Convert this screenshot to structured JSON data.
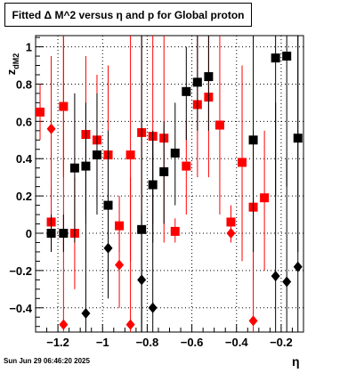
{
  "title": "Fitted Δ M^2 versus η and p for Global proton",
  "footer": "Sun Jun 29 06:46:20 2025",
  "chart_data": {
    "type": "scatter",
    "title": "Fitted Δ M^2 versus η and p for Global proton",
    "xlabel": "η",
    "ylabel": "z_dM2",
    "xlim": [
      -1.3,
      -0.1
    ],
    "ylim": [
      -0.53,
      1.06
    ],
    "grid": true,
    "x_ticks": [
      -1.2,
      -1.0,
      -0.8,
      -0.6,
      -0.4,
      -0.2
    ],
    "x_tick_labels": [
      "−1.2",
      "−1",
      "−0.8",
      "−0.6",
      "−0.4",
      "−0.2"
    ],
    "y_ticks": [
      -0.4,
      -0.2,
      0,
      0.2,
      0.4,
      0.6,
      0.8,
      1.0
    ],
    "y_tick_labels": [
      "−0.4",
      "−0.2",
      "0",
      "0.2",
      "0.4",
      "0.6",
      "0.8",
      "1"
    ],
    "series": [
      {
        "color": "#ff0000",
        "marker": "square",
        "points": [
          {
            "x": -1.28,
            "y": 0.65,
            "lo": 0.5,
            "hi": 0.8
          },
          {
            "x": -1.23,
            "y": 0.06,
            "lo": -0.1,
            "hi": 0.25
          },
          {
            "x": -1.175,
            "y": 0.68,
            "lo": 0.3,
            "hi": 1.06
          },
          {
            "x": -1.125,
            "y": 0.0,
            "lo": -0.3,
            "hi": 0.3
          },
          {
            "x": -1.075,
            "y": 0.53,
            "lo": 0.1,
            "hi": 0.95
          },
          {
            "x": -1.025,
            "y": 0.5,
            "lo": 0.15,
            "hi": 0.85
          },
          {
            "x": -0.975,
            "y": 0.42,
            "lo": -0.05,
            "hi": 0.9
          },
          {
            "x": -0.925,
            "y": 0.04,
            "lo": -0.1,
            "hi": 0.2
          },
          {
            "x": -0.875,
            "y": 0.42,
            "lo": -0.15,
            "hi": 1.06
          },
          {
            "x": -0.825,
            "y": 0.54,
            "lo": 0.1,
            "hi": 1.06
          },
          {
            "x": -0.775,
            "y": 0.52,
            "lo": 0.05,
            "hi": 1.06
          },
          {
            "x": -0.725,
            "y": 0.51,
            "lo": -0.05,
            "hi": 1.06
          },
          {
            "x": -0.675,
            "y": 0.01,
            "lo": -0.05,
            "hi": 0.08
          },
          {
            "x": -0.625,
            "y": 0.36,
            "lo": 0.1,
            "hi": 0.6
          },
          {
            "x": -0.575,
            "y": 0.69,
            "lo": 0.3,
            "hi": 1.06
          },
          {
            "x": -0.525,
            "y": 0.73,
            "lo": 0.3,
            "hi": 1.06
          },
          {
            "x": -0.475,
            "y": 0.58,
            "lo": 0.1,
            "hi": 1.06
          },
          {
            "x": -0.425,
            "y": 0.06,
            "lo": -0.05,
            "hi": 0.15
          },
          {
            "x": -0.375,
            "y": 0.38,
            "lo": -0.15,
            "hi": 0.9
          },
          {
            "x": -0.325,
            "y": 0.14,
            "lo": -0.25,
            "hi": 0.55
          },
          {
            "x": -0.275,
            "y": 0.19,
            "lo": -0.2,
            "hi": 0.55
          }
        ]
      },
      {
        "color": "#ff0000",
        "marker": "diamond",
        "points": [
          {
            "x": -1.23,
            "y": 0.56,
            "lo": 0.2,
            "hi": 0.95
          },
          {
            "x": -1.175,
            "y": -0.49,
            "lo": -0.53,
            "hi": 1.06
          },
          {
            "x": -0.925,
            "y": -0.17,
            "lo": -0.4,
            "hi": 0.05
          },
          {
            "x": -0.875,
            "y": -0.49,
            "lo": -0.53,
            "hi": 0.3
          },
          {
            "x": -0.425,
            "y": 0.0,
            "lo": -0.05,
            "hi": 0.05
          },
          {
            "x": -0.325,
            "y": -0.47,
            "lo": -0.53,
            "hi": 0.2
          }
        ]
      },
      {
        "color": "#000000",
        "marker": "square",
        "points": [
          {
            "x": -1.23,
            "y": 0.0,
            "lo": -0.1,
            "hi": 0.1
          },
          {
            "x": -1.175,
            "y": 0.0,
            "lo": -0.1,
            "hi": 0.1
          },
          {
            "x": -1.125,
            "y": 0.35,
            "lo": -0.05,
            "hi": 0.75
          },
          {
            "x": -1.075,
            "y": 0.36,
            "lo": 0.05,
            "hi": 0.7
          },
          {
            "x": -1.025,
            "y": 0.42,
            "lo": 0.1,
            "hi": 0.75
          },
          {
            "x": -0.975,
            "y": 0.15,
            "lo": -0.25,
            "hi": 0.55
          },
          {
            "x": -0.825,
            "y": 0.02,
            "lo": -0.53,
            "hi": 1.06
          },
          {
            "x": -0.775,
            "y": 0.26,
            "lo": -0.05,
            "hi": 0.55
          },
          {
            "x": -0.725,
            "y": 0.33,
            "lo": 0.05,
            "hi": 0.6
          },
          {
            "x": -0.675,
            "y": 0.43,
            "lo": 0.15,
            "hi": 0.7
          },
          {
            "x": -0.625,
            "y": 0.76,
            "lo": 0.5,
            "hi": 1.0
          },
          {
            "x": -0.575,
            "y": 0.81,
            "lo": 0.55,
            "hi": 1.06
          },
          {
            "x": -0.525,
            "y": 0.84,
            "lo": 0.55,
            "hi": 1.06
          },
          {
            "x": -0.325,
            "y": 0.5,
            "lo": -0.1,
            "hi": 1.06
          },
          {
            "x": -0.225,
            "y": 0.94,
            "lo": 0.2,
            "hi": 1.06
          },
          {
            "x": -0.175,
            "y": 0.95,
            "lo": 0.25,
            "hi": 1.06
          },
          {
            "x": -0.125,
            "y": 0.51,
            "lo": -0.1,
            "hi": 1.06
          }
        ]
      },
      {
        "color": "#000000",
        "marker": "diamond",
        "points": [
          {
            "x": -1.075,
            "y": -0.43,
            "lo": -0.53,
            "hi": 0.5
          },
          {
            "x": -0.975,
            "y": -0.08,
            "lo": -0.35,
            "hi": 0.15
          },
          {
            "x": -0.825,
            "y": -0.25,
            "lo": -0.53,
            "hi": 0.1
          },
          {
            "x": -0.775,
            "y": -0.4,
            "lo": -0.53,
            "hi": 0.5
          },
          {
            "x": -0.225,
            "y": -0.23,
            "lo": -0.53,
            "hi": 0.7
          },
          {
            "x": -0.175,
            "y": -0.26,
            "lo": -0.53,
            "hi": 0.4
          },
          {
            "x": -0.125,
            "y": -0.18,
            "lo": -0.53,
            "hi": 1.06
          }
        ]
      }
    ]
  }
}
